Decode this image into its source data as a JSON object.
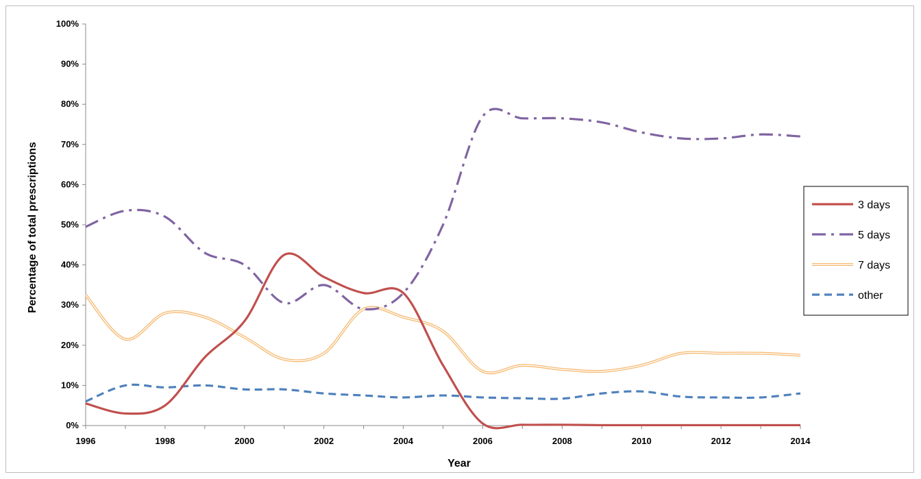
{
  "chart_data": {
    "type": "line",
    "title": "",
    "xlabel": "Year",
    "ylabel": "Percentage of total prescriptions",
    "x": [
      1996,
      1997,
      1998,
      1999,
      2000,
      2001,
      2002,
      2003,
      2004,
      2005,
      2006,
      2007,
      2008,
      2009,
      2010,
      2011,
      2012,
      2013,
      2014
    ],
    "xlim": [
      1996,
      2014
    ],
    "ylim": [
      0,
      100
    ],
    "x_ticks": [
      "1996",
      "1998",
      "2000",
      "2002",
      "2004",
      "2006",
      "2008",
      "2010",
      "2012",
      "2014"
    ],
    "y_ticks": [
      "0%",
      "10%",
      "20%",
      "30%",
      "40%",
      "50%",
      "60%",
      "70%",
      "80%",
      "90%",
      "100%"
    ],
    "grid": false,
    "legend_position": "right",
    "series": [
      {
        "name": "3 days",
        "color": "#c0504d",
        "style": "solid",
        "values": [
          5.5,
          3,
          5,
          17,
          26,
          42.5,
          37,
          33,
          33,
          15,
          0.5,
          0.2,
          0.2,
          0.1,
          0.1,
          0.1,
          0.1,
          0.1,
          0.1
        ]
      },
      {
        "name": "5 days",
        "color": "#8064a2",
        "style": "dashdot",
        "values": [
          49.5,
          53.5,
          52,
          43,
          40,
          30.5,
          35,
          29,
          33,
          50,
          77,
          76.5,
          76.5,
          75.5,
          73,
          71.5,
          71.5,
          72.5,
          72
        ]
      },
      {
        "name": "7 days",
        "color": "#f5b971",
        "style": "double",
        "values": [
          32.5,
          21.5,
          28,
          27,
          22,
          16.5,
          18,
          29,
          27,
          23.5,
          13.5,
          15,
          14,
          13.5,
          15,
          18,
          18,
          18,
          17.5
        ]
      },
      {
        "name": "other",
        "color": "#4f81bd",
        "style": "dashed",
        "values": [
          6,
          10,
          9.5,
          10,
          9,
          9,
          8,
          7.5,
          7,
          7.5,
          7,
          6.8,
          6.7,
          8,
          8.5,
          7.2,
          7,
          7,
          8
        ]
      }
    ]
  }
}
